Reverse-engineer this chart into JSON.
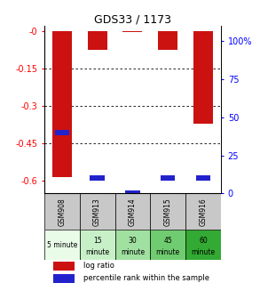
{
  "title": "GDS33 / 1173",
  "samples": [
    "GSM908",
    "GSM913",
    "GSM914",
    "GSM915",
    "GSM916"
  ],
  "time_labels_line1": [
    "5 minute",
    "15",
    "30",
    "45",
    "60"
  ],
  "time_labels_line2": [
    "",
    "minute",
    "minute",
    "minute",
    "minute"
  ],
  "time_bg_colors": [
    "#e8fce8",
    "#c8f0c8",
    "#a0e0a0",
    "#70cc70",
    "#33aa33"
  ],
  "log_ratios": [
    -0.585,
    -0.075,
    -0.005,
    -0.075,
    -0.37
  ],
  "percentile_ranks": [
    40,
    10,
    0,
    10,
    10
  ],
  "ylim_left": [
    -0.65,
    0.02
  ],
  "ylim_right": [
    0,
    110
  ],
  "left_yticks": [
    -0.0,
    -0.15,
    -0.3,
    -0.45,
    -0.6
  ],
  "left_ytick_labels": [
    "-0",
    "-0.15",
    "-0.3",
    "-0.45",
    "-0.6"
  ],
  "right_yticks": [
    0,
    25,
    50,
    75,
    100
  ],
  "right_ytick_labels": [
    "0",
    "25",
    "50",
    "75",
    "100%"
  ],
  "bar_width": 0.55,
  "bar_color_red": "#cc1111",
  "bar_color_blue": "#2222cc",
  "sample_bg_color": "#c8c8c8",
  "legend_entries": [
    "log ratio",
    "percentile rank within the sample"
  ],
  "legend_colors": [
    "#cc1111",
    "#2222cc"
  ],
  "grid_yticks": [
    -0.15,
    -0.3,
    -0.45
  ]
}
